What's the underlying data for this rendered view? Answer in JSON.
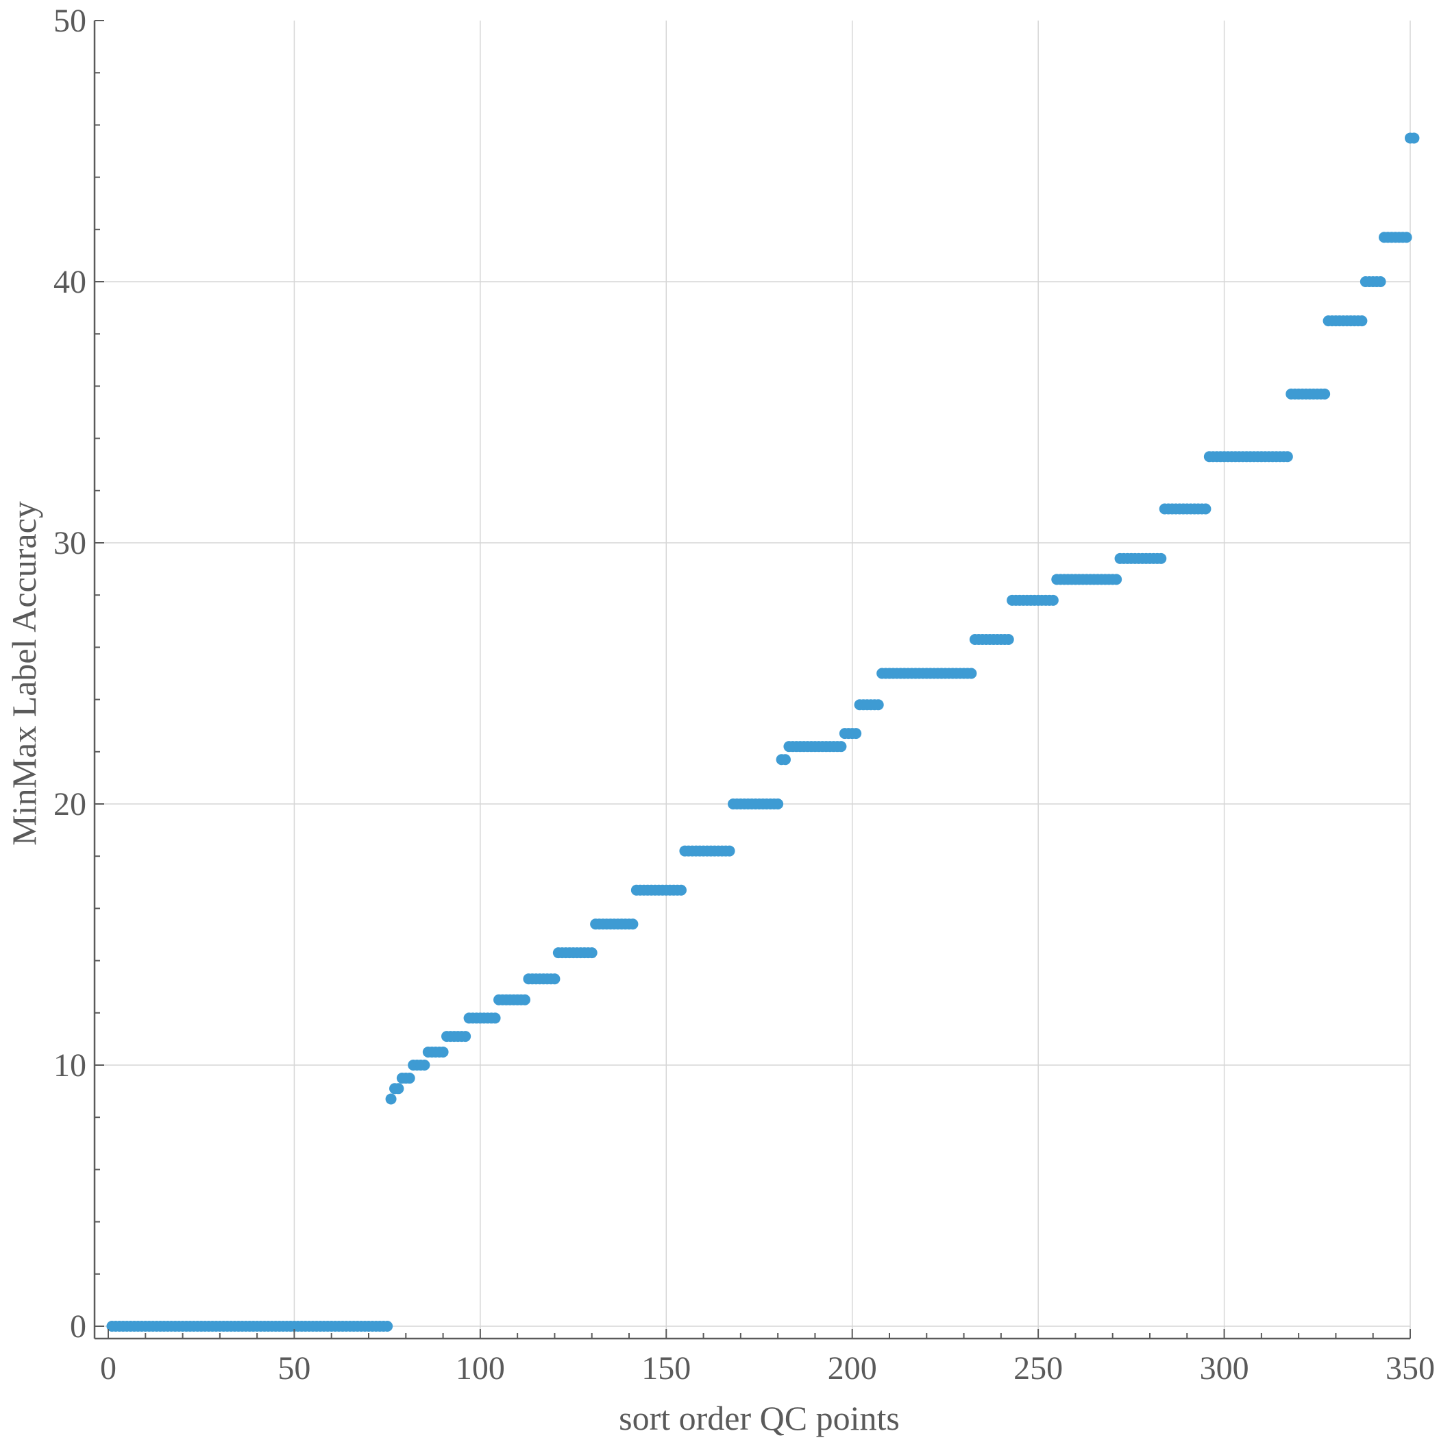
{
  "chart_data": {
    "type": "scatter",
    "title": "",
    "xlabel": "sort order QC points",
    "ylabel": "MinMax Label Accuracy",
    "xlim": [
      0,
      350
    ],
    "ylim": [
      0,
      50
    ],
    "x_ticks": [
      0,
      50,
      100,
      150,
      200,
      250,
      300,
      350
    ],
    "y_ticks": [
      0,
      10,
      20,
      30,
      40,
      50
    ],
    "grid": true,
    "legend": "none",
    "point_color": "#3e9bd3",
    "segments": [
      {
        "x_start": 1,
        "x_end": 75,
        "y": 0
      },
      {
        "x_start": 76,
        "x_end": 76,
        "y": 8.7
      },
      {
        "x_start": 77,
        "x_end": 78,
        "y": 9.1
      },
      {
        "x_start": 79,
        "x_end": 81,
        "y": 9.5
      },
      {
        "x_start": 82,
        "x_end": 85,
        "y": 10.0
      },
      {
        "x_start": 86,
        "x_end": 90,
        "y": 10.5
      },
      {
        "x_start": 91,
        "x_end": 96,
        "y": 11.1
      },
      {
        "x_start": 97,
        "x_end": 104,
        "y": 11.8
      },
      {
        "x_start": 105,
        "x_end": 112,
        "y": 12.5
      },
      {
        "x_start": 113,
        "x_end": 120,
        "y": 13.3
      },
      {
        "x_start": 121,
        "x_end": 130,
        "y": 14.3
      },
      {
        "x_start": 131,
        "x_end": 141,
        "y": 15.4
      },
      {
        "x_start": 142,
        "x_end": 154,
        "y": 16.7
      },
      {
        "x_start": 155,
        "x_end": 167,
        "y": 18.2
      },
      {
        "x_start": 168,
        "x_end": 180,
        "y": 20.0
      },
      {
        "x_start": 181,
        "x_end": 182,
        "y": 21.7
      },
      {
        "x_start": 183,
        "x_end": 197,
        "y": 22.2
      },
      {
        "x_start": 198,
        "x_end": 201,
        "y": 22.7
      },
      {
        "x_start": 202,
        "x_end": 207,
        "y": 23.8
      },
      {
        "x_start": 208,
        "x_end": 232,
        "y": 25.0
      },
      {
        "x_start": 233,
        "x_end": 242,
        "y": 26.3
      },
      {
        "x_start": 243,
        "x_end": 254,
        "y": 27.8
      },
      {
        "x_start": 255,
        "x_end": 271,
        "y": 28.6
      },
      {
        "x_start": 272,
        "x_end": 283,
        "y": 29.4
      },
      {
        "x_start": 284,
        "x_end": 295,
        "y": 31.3
      },
      {
        "x_start": 296,
        "x_end": 317,
        "y": 33.3
      },
      {
        "x_start": 318,
        "x_end": 327,
        "y": 35.7
      },
      {
        "x_start": 328,
        "x_end": 337,
        "y": 38.5
      },
      {
        "x_start": 338,
        "x_end": 342,
        "y": 40.0
      },
      {
        "x_start": 343,
        "x_end": 349,
        "y": 41.7
      },
      {
        "x_start": 350,
        "x_end": 351,
        "y": 45.5
      }
    ]
  }
}
